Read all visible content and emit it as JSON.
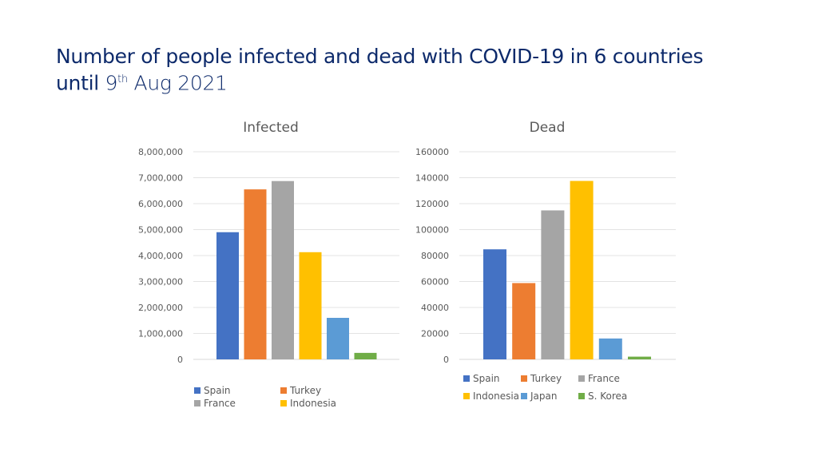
{
  "title": {
    "line1": "Number of people infected and dead with COVID-19 in 6 countries",
    "line2_prefix": "until ",
    "day": "9",
    "day_suffix": "th",
    "line2_rest": " Aug 2021"
  },
  "colors": {
    "Spain": "#4472c4",
    "Turkey": "#ed7d31",
    "France": "#a5a5a5",
    "Indonesia": "#ffc000",
    "Japan": "#5b9bd5",
    "S. Korea": "#70ad47"
  },
  "chart_data": [
    {
      "type": "bar",
      "title": "Infected",
      "categories": [
        "Spain",
        "Turkey",
        "France",
        "Indonesia",
        "Japan",
        "S. Korea"
      ],
      "values": [
        4900000,
        6550000,
        6870000,
        4130000,
        1600000,
        250000
      ],
      "ylim": [
        0,
        8000000
      ],
      "yticks": [
        0,
        1000000,
        2000000,
        3000000,
        4000000,
        5000000,
        6000000,
        7000000,
        8000000
      ],
      "ytick_labels": [
        "0",
        "1,000,000",
        "2,000,000",
        "3,000,000",
        "4,000,000",
        "5,000,000",
        "6,000,000",
        "7,000,000",
        "8,000,000"
      ],
      "xlabel": "",
      "ylabel": "",
      "grid": true,
      "legend_entries": [
        "Spain",
        "Turkey",
        "France",
        "Indonesia"
      ],
      "legend_position": "bottom"
    },
    {
      "type": "bar",
      "title": "Dead",
      "categories": [
        "Spain",
        "Turkey",
        "France",
        "Indonesia",
        "Japan",
        "S. Korea"
      ],
      "values": [
        84800,
        58800,
        114800,
        137500,
        16100,
        2100
      ],
      "ylim": [
        0,
        160000
      ],
      "yticks": [
        0,
        20000,
        40000,
        60000,
        80000,
        100000,
        120000,
        140000,
        160000
      ],
      "ytick_labels": [
        "0",
        "20000",
        "40000",
        "60000",
        "80000",
        "100000",
        "120000",
        "140000",
        "160000"
      ],
      "xlabel": "",
      "ylabel": "",
      "grid": true,
      "legend_entries": [
        "Spain",
        "Turkey",
        "France",
        "Indonesia",
        "Japan",
        "S. Korea"
      ],
      "legend_position": "bottom"
    }
  ]
}
